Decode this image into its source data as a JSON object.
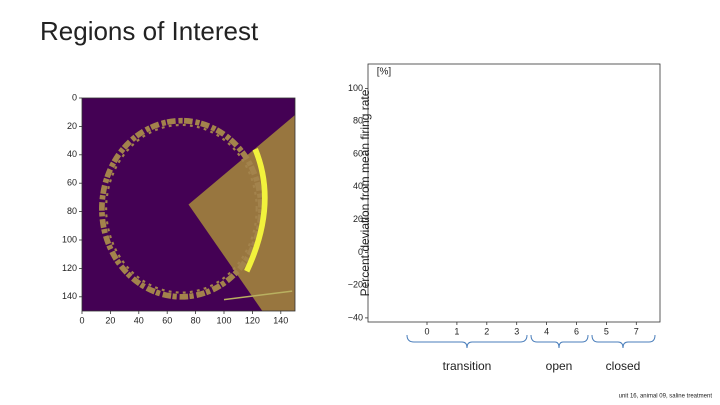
{
  "title": "Regions of Interest",
  "footnote": "unit 16, animal 09, saline treatment",
  "chart_data": [
    {
      "type": "image",
      "xlim": [
        0,
        150
      ],
      "ylim": [
        150,
        0
      ],
      "xticks": [
        0,
        20,
        40,
        60,
        80,
        100,
        120,
        140
      ],
      "yticks": [
        0,
        20,
        40,
        60,
        80,
        100,
        120,
        140
      ]
    },
    {
      "type": "bar",
      "y_label": "Percent deviation from mean firing rate",
      "unit": "[%]",
      "categories": [
        "0",
        "1",
        "2",
        "3",
        "4",
        "6",
        "5",
        "7"
      ],
      "groups": [
        "transition",
        "open",
        "closed"
      ],
      "ylim": [
        -42.5,
        115
      ],
      "yticks": [
        {
          "value": -40,
          "label": "−40"
        },
        {
          "value": -20,
          "label": "−20"
        },
        0,
        20,
        40,
        60,
        80,
        100
      ]
    }
  ]
}
